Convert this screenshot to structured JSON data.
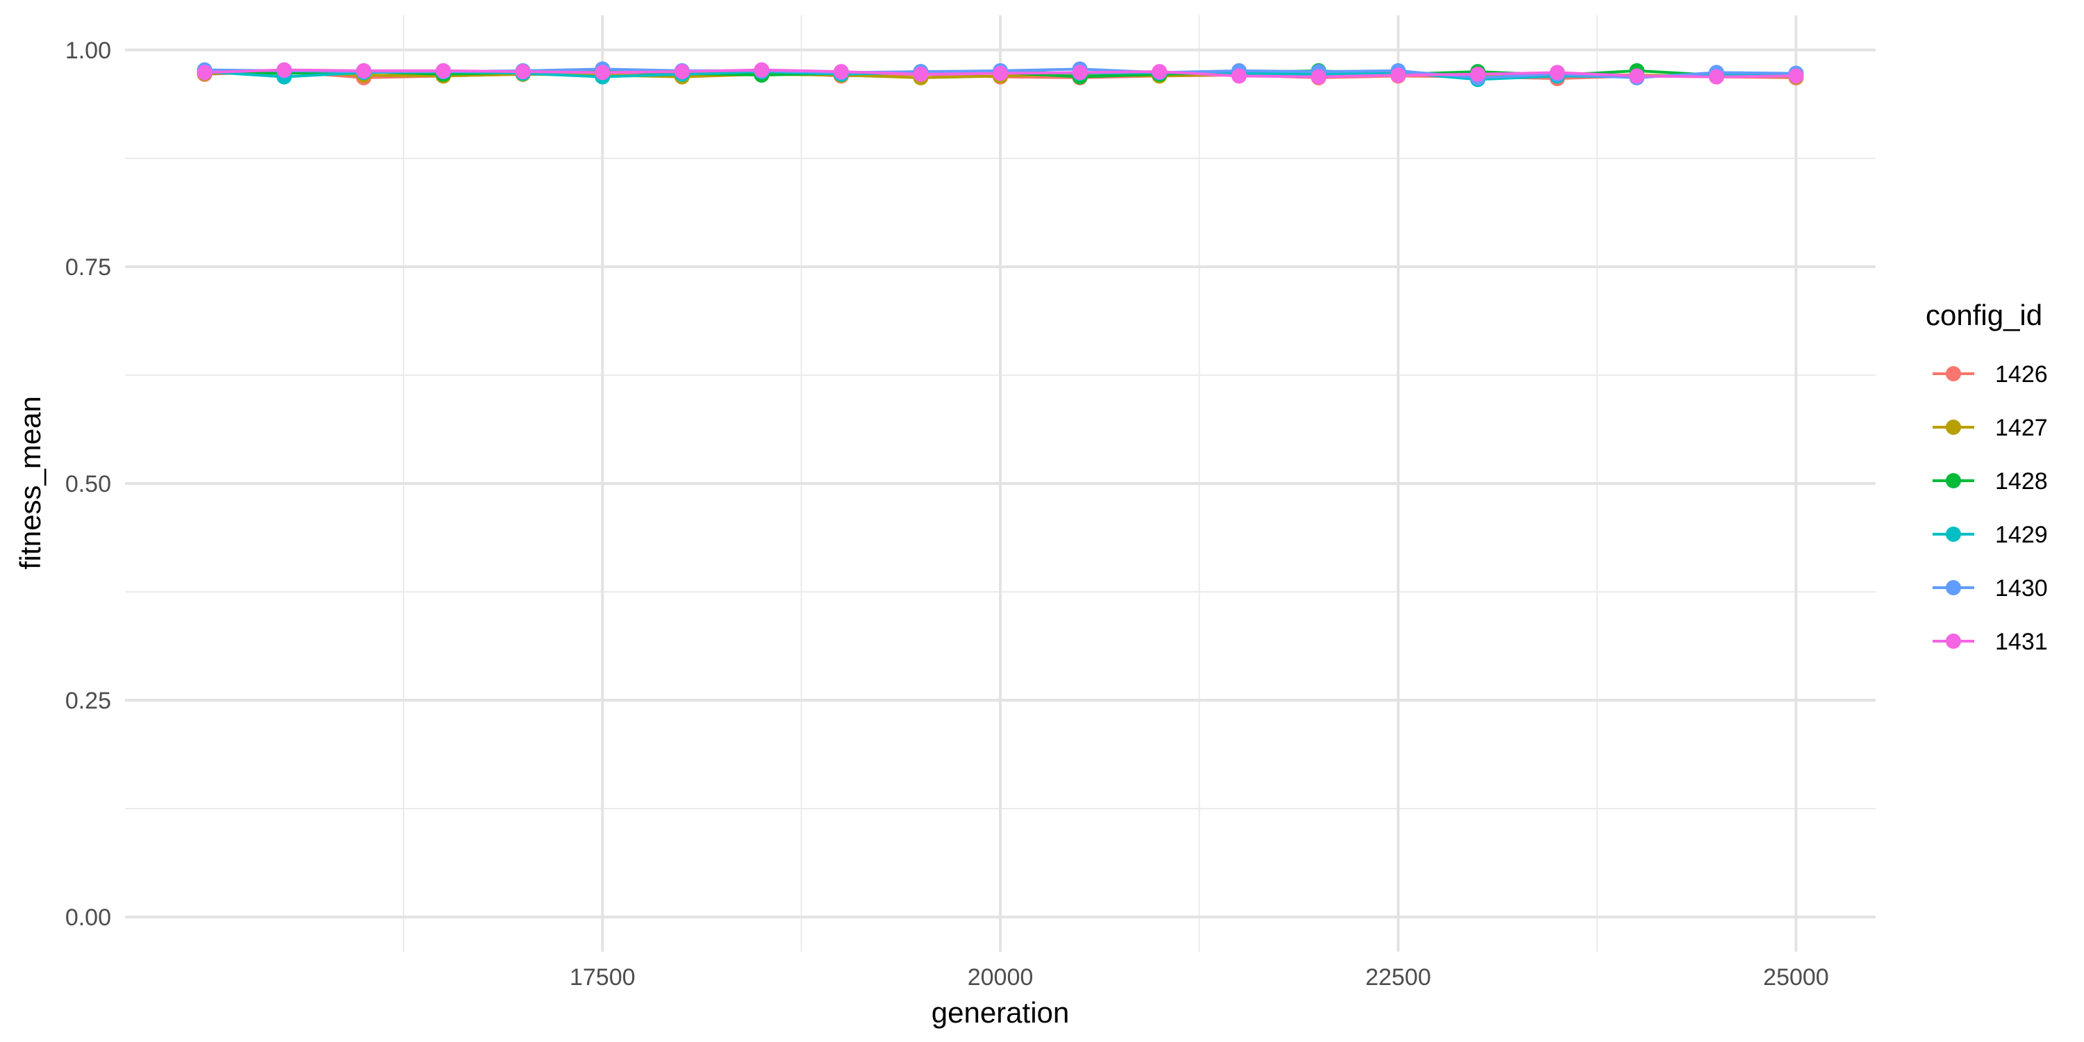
{
  "chart_data": {
    "type": "line",
    "title": "",
    "xlabel": "generation",
    "ylabel": "fitness_mean",
    "xlim": [
      14500,
      25500
    ],
    "ylim": [
      -0.04,
      1.04
    ],
    "x_ticks": [
      17500,
      20000,
      22500,
      25000
    ],
    "x_tick_labels": [
      "17500",
      "20000",
      "22500",
      "25000"
    ],
    "y_ticks": [
      0.0,
      0.25,
      0.5,
      0.75,
      1.0
    ],
    "y_tick_labels": [
      "0.00",
      "0.25",
      "0.50",
      "0.75",
      "1.00"
    ],
    "grid": true,
    "legend": {
      "title": "config_id",
      "position": "right"
    },
    "x": [
      15000,
      15500,
      16000,
      16500,
      17000,
      17500,
      18000,
      18500,
      19000,
      19500,
      20000,
      20500,
      21000,
      21500,
      22000,
      22500,
      23000,
      23500,
      24000,
      24500,
      25000
    ],
    "series": [
      {
        "name": "1426",
        "color": "#F8766D",
        "values": [
          0.972,
          0.975,
          0.968,
          0.97,
          0.972,
          0.973,
          0.971,
          0.974,
          0.97,
          0.972,
          0.969,
          0.968,
          0.97,
          0.971,
          0.968,
          0.97,
          0.969,
          0.967,
          0.97,
          0.969,
          0.968
        ]
      },
      {
        "name": "1427",
        "color": "#B79F00",
        "values": [
          0.973,
          0.974,
          0.971,
          0.97,
          0.972,
          0.971,
          0.969,
          0.972,
          0.971,
          0.968,
          0.97,
          0.972,
          0.97,
          0.972,
          0.971,
          0.973,
          0.97,
          0.972,
          0.971,
          0.97,
          0.969
        ]
      },
      {
        "name": "1428",
        "color": "#00BA38",
        "values": [
          0.974,
          0.973,
          0.975,
          0.972,
          0.974,
          0.975,
          0.973,
          0.971,
          0.973,
          0.975,
          0.974,
          0.969,
          0.972,
          0.974,
          0.976,
          0.972,
          0.975,
          0.971,
          0.976,
          0.971,
          0.972
        ]
      },
      {
        "name": "1429",
        "color": "#00BFC4",
        "values": [
          0.975,
          0.969,
          0.974,
          0.975,
          0.973,
          0.969,
          0.972,
          0.975,
          0.972,
          0.974,
          0.975,
          0.973,
          0.974,
          0.973,
          0.972,
          0.974,
          0.966,
          0.97,
          0.969,
          0.972,
          0.973
        ]
      },
      {
        "name": "1430",
        "color": "#619CFF",
        "values": [
          0.977,
          0.976,
          0.975,
          0.975,
          0.976,
          0.978,
          0.976,
          0.976,
          0.974,
          0.975,
          0.976,
          0.978,
          0.974,
          0.976,
          0.975,
          0.976,
          0.968,
          0.972,
          0.968,
          0.974,
          0.973
        ]
      },
      {
        "name": "1431",
        "color": "#F564E3",
        "values": [
          0.974,
          0.977,
          0.976,
          0.976,
          0.975,
          0.974,
          0.975,
          0.977,
          0.975,
          0.972,
          0.973,
          0.974,
          0.975,
          0.97,
          0.969,
          0.971,
          0.972,
          0.974,
          0.97,
          0.969,
          0.97
        ]
      }
    ]
  }
}
